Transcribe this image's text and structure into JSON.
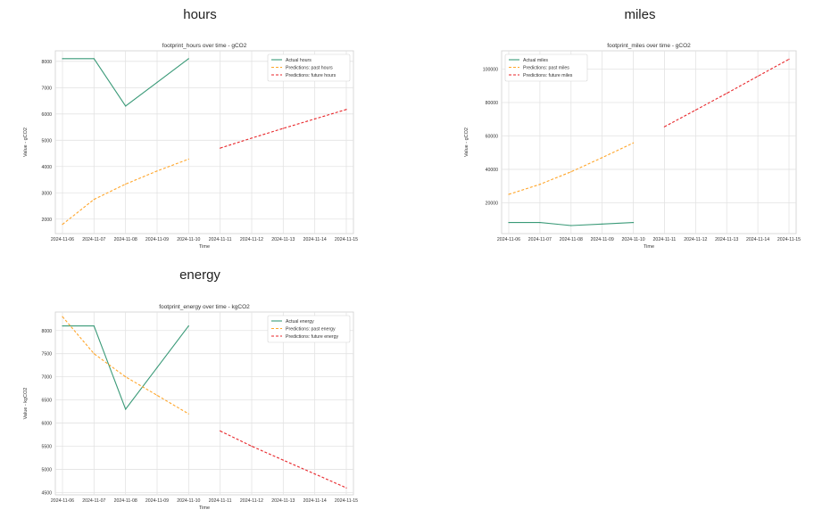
{
  "panels": [
    {
      "key": "hours",
      "heading": "hours"
    },
    {
      "key": "miles",
      "heading": "miles"
    },
    {
      "key": "energy",
      "heading": "energy"
    }
  ],
  "colors": {
    "actual": "#3a9a78",
    "past": "#ffa62b",
    "future": "#e8262a",
    "grid": "#e3e3e3"
  },
  "chart_data": [
    {
      "type": "line",
      "title": "footprint_hours over time - gCO2",
      "xlabel": "Time",
      "ylabel": "Value - gCO2",
      "x_ticks": [
        "2024-11-06",
        "2024-11-07",
        "2024-11-08",
        "2024-11-09",
        "2024-11-10",
        "2024-11-11",
        "2024-11-12",
        "2024-11-13",
        "2024-11-14",
        "2024-11-15"
      ],
      "y_ticks": [
        2000,
        3000,
        4000,
        5000,
        6000,
        7000,
        8000
      ],
      "ylim": [
        1450,
        8400
      ],
      "grid": true,
      "legend": "top-right",
      "series": [
        {
          "name": "Actual hours",
          "style": "solid",
          "color": "actual",
          "x": [
            "2024-11-06",
            "2024-11-07",
            "2024-11-08",
            "2024-11-09",
            "2024-11-10"
          ],
          "values": [
            8100,
            8100,
            6300,
            7200,
            8100
          ]
        },
        {
          "name": "Predictions: past hours",
          "style": "dashed",
          "color": "past",
          "x": [
            "2024-11-06",
            "2024-11-07",
            "2024-11-08",
            "2024-11-09",
            "2024-11-10"
          ],
          "values": [
            1800,
            2750,
            3330,
            3830,
            4280
          ]
        },
        {
          "name": "Predictions: future hours",
          "style": "dashed",
          "color": "future",
          "x": [
            "2024-11-11",
            "2024-11-12",
            "2024-11-13",
            "2024-11-14",
            "2024-11-15"
          ],
          "values": [
            4700,
            5080,
            5450,
            5810,
            6170
          ]
        }
      ]
    },
    {
      "type": "line",
      "title": "footprint_miles over time - gCO2",
      "xlabel": "Time",
      "ylabel": "Value - gCO2",
      "x_ticks": [
        "2024-11-06",
        "2024-11-07",
        "2024-11-08",
        "2024-11-09",
        "2024-11-10",
        "2024-11-11",
        "2024-11-12",
        "2024-11-13",
        "2024-11-14",
        "2024-11-15"
      ],
      "y_ticks": [
        20000,
        40000,
        60000,
        80000,
        100000
      ],
      "ylim": [
        1500,
        111000
      ],
      "grid": true,
      "legend": "top-left",
      "series": [
        {
          "name": "Actual miles",
          "style": "solid",
          "color": "actual",
          "x": [
            "2024-11-06",
            "2024-11-07",
            "2024-11-08",
            "2024-11-09",
            "2024-11-10"
          ],
          "values": [
            8100,
            8100,
            6300,
            7200,
            8100
          ]
        },
        {
          "name": "Predictions: past miles",
          "style": "dashed",
          "color": "past",
          "x": [
            "2024-11-06",
            "2024-11-07",
            "2024-11-08",
            "2024-11-09",
            "2024-11-10"
          ],
          "values": [
            25000,
            31000,
            38500,
            47000,
            55800
          ]
        },
        {
          "name": "Predictions: future miles",
          "style": "dashed",
          "color": "future",
          "x": [
            "2024-11-11",
            "2024-11-12",
            "2024-11-13",
            "2024-11-14",
            "2024-11-15"
          ],
          "values": [
            65500,
            75500,
            85500,
            95800,
            106000
          ]
        }
      ]
    },
    {
      "type": "line",
      "title": "footprint_energy over time - kgCO2",
      "xlabel": "Time",
      "ylabel": "Value - kgCO2",
      "x_ticks": [
        "2024-11-06",
        "2024-11-07",
        "2024-11-08",
        "2024-11-09",
        "2024-11-10",
        "2024-11-11",
        "2024-11-12",
        "2024-11-13",
        "2024-11-14",
        "2024-11-15"
      ],
      "y_ticks": [
        4500,
        5000,
        5500,
        6000,
        6500,
        7000,
        7500,
        8000
      ],
      "ylim": [
        4450,
        8400
      ],
      "grid": true,
      "legend": "top-right",
      "series": [
        {
          "name": "Actual energy",
          "style": "solid",
          "color": "actual",
          "x": [
            "2024-11-06",
            "2024-11-07",
            "2024-11-08",
            "2024-11-09",
            "2024-11-10"
          ],
          "values": [
            8100,
            8100,
            6300,
            7200,
            8100
          ]
        },
        {
          "name": "Predictions: past energy",
          "style": "dashed",
          "color": "past",
          "x": [
            "2024-11-06",
            "2024-11-07",
            "2024-11-08",
            "2024-11-09",
            "2024-11-10"
          ],
          "values": [
            8300,
            7500,
            7000,
            6600,
            6200
          ]
        },
        {
          "name": "Predictions: future energy",
          "style": "dashed",
          "color": "future",
          "x": [
            "2024-11-11",
            "2024-11-12",
            "2024-11-13",
            "2024-11-14",
            "2024-11-15"
          ],
          "values": [
            5830,
            5500,
            5200,
            4900,
            4600
          ]
        }
      ]
    }
  ]
}
